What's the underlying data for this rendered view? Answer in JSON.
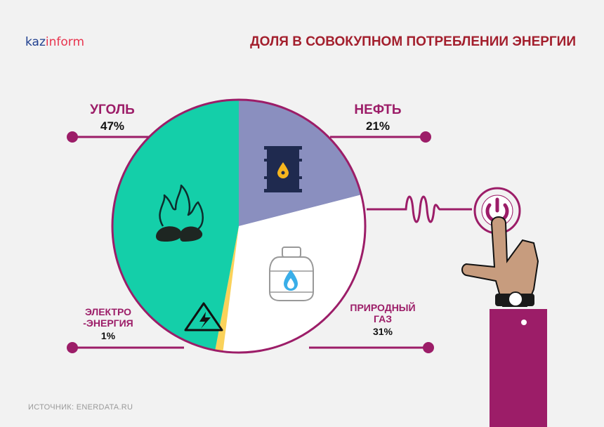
{
  "logo": {
    "part1": "kaz",
    "part2": "inform"
  },
  "title": "ДОЛЯ В СОВОКУПНОМ ПОТРЕБЛЕНИИ ЭНЕРГИИ",
  "source": "ИСТОЧНИК: ENERDATA.RU",
  "labels": {
    "coal": {
      "name": "УГОЛЬ",
      "value": "47%"
    },
    "oil": {
      "name": "НЕФТЬ",
      "value": "21%"
    },
    "gas": {
      "name_line1": "ПРИРОДНЫЙ",
      "name_line2": "ГАЗ",
      "value": "31%"
    },
    "electricity": {
      "name_line1": "ЭЛЕКТРО",
      "name_line2": "-ЭНЕРГИЯ",
      "value": "1%"
    }
  },
  "colors": {
    "coal": "#14cfa9",
    "oil": "#8a8fbf",
    "gas": "#ffffff",
    "electricity": "#fad25a",
    "accent": "#9c1d68",
    "title": "#a31f2d"
  },
  "chart_data": {
    "type": "pie",
    "title": "ДОЛЯ В СОВОКУПНОМ ПОТРЕБЛЕНИИ ЭНЕРГИИ",
    "categories": [
      "НЕФТЬ",
      "ПРИРОДНЫЙ ГАЗ",
      "ЭЛЕКТРОЭНЕРГИЯ",
      "УГОЛЬ"
    ],
    "values": [
      21,
      31,
      1,
      47
    ],
    "display_values": [
      "21%",
      "31%",
      "1%",
      "47%"
    ],
    "icons": [
      "oil-barrel-icon",
      "gas-cylinder-icon",
      "high-voltage-icon",
      "burning-coal-icon"
    ]
  }
}
